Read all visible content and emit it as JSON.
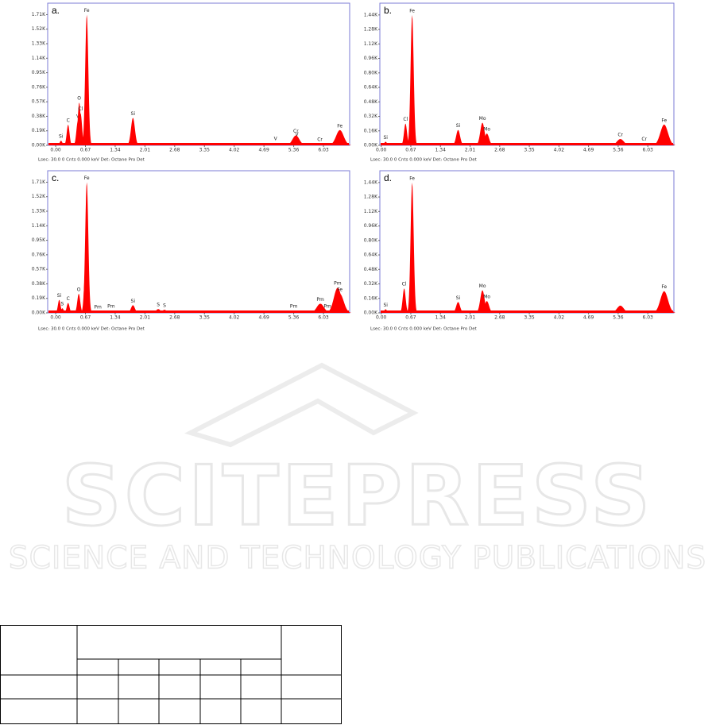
{
  "chart_data": [
    {
      "type": "spectrum",
      "title": "a.",
      "color": "#ff0000",
      "footer": "Lsec: 30.0 0 Cnts  0.000 keV Det: Octane Pro Det",
      "xlim": [
        -0.18,
        6.62
      ],
      "ylim": [
        0,
        1860
      ],
      "xticks": [
        {
          "value": 0,
          "label": "0.00"
        },
        0.67,
        1.34,
        2.01,
        2.68,
        3.35,
        4.02,
        4.69,
        5.36,
        6.03
      ],
      "yticks": [
        {
          "value": 0,
          "label": "0.00K"
        },
        {
          "value": 190,
          "label": "0.19K"
        },
        {
          "value": 380,
          "label": "0.38K"
        },
        {
          "value": 570,
          "label": "0.57K"
        },
        {
          "value": 760,
          "label": "0.76K"
        },
        {
          "value": 950,
          "label": "0.95K"
        },
        {
          "value": 1140,
          "label": "1.14K"
        },
        {
          "value": 1330,
          "label": "1.33K"
        },
        {
          "value": 1520,
          "label": "1.52K"
        },
        {
          "value": 1710,
          "label": "1.71K"
        }
      ],
      "x": [
        0.12,
        0.28,
        0.5,
        0.53,
        0.56,
        0.7,
        1.74,
        4.95,
        5.41,
        5.43,
        5.95,
        6.4
      ],
      "values": [
        60,
        270,
        320,
        560,
        420,
        1710,
        360,
        30,
        130,
        90,
        20,
        200
      ],
      "labels": [
        "Si",
        "C",
        "V",
        "O",
        "Cl",
        "Fe",
        "Si",
        "V",
        "Cr",
        "V",
        "Cr",
        "Fe"
      ]
    },
    {
      "type": "spectrum",
      "title": "b.",
      "color": "#ff0000",
      "footer": "Lsec: 30.0 0 Cnts  0.000 keV Det: Octane Pro Det",
      "xlim": [
        -0.03,
        6.62
      ],
      "ylim": [
        0,
        1570
      ],
      "xticks": [
        {
          "value": 0,
          "label": "0.00"
        },
        0.67,
        1.34,
        2.01,
        2.68,
        3.35,
        4.02,
        4.69,
        5.36,
        6.03
      ],
      "yticks": [
        {
          "value": 0,
          "label": "0.00K"
        },
        {
          "value": 160,
          "label": "0.16K"
        },
        {
          "value": 320,
          "label": "0.32K"
        },
        {
          "value": 480,
          "label": "0.48K"
        },
        {
          "value": 640,
          "label": "0.64K"
        },
        {
          "value": 800,
          "label": "0.80K"
        },
        {
          "value": 960,
          "label": "0.96K"
        },
        {
          "value": 1120,
          "label": "1.12K"
        },
        {
          "value": 1280,
          "label": "1.28K"
        },
        {
          "value": 1440,
          "label": "1.44K"
        }
      ],
      "x": [
        0.1,
        0.55,
        0.7,
        1.74,
        2.29,
        2.39,
        5.41,
        5.95,
        6.4
      ],
      "values": [
        40,
        240,
        1440,
        170,
        250,
        130,
        70,
        20,
        230
      ],
      "labels": [
        "Si",
        "Cl",
        "Fe",
        "Si",
        "Mo",
        "Mo",
        "Cr",
        "Cr",
        "Fe"
      ]
    },
    {
      "type": "spectrum",
      "title": "c.",
      "color": "#ff0000",
      "footer": "Lsec: 30.0 0 Cnts  0.000 keV Det: Octane Pro Det",
      "xlim": [
        -0.18,
        6.62
      ],
      "ylim": [
        0,
        1860
      ],
      "xticks": [
        {
          "value": 0,
          "label": "0.00"
        },
        0.67,
        1.34,
        2.01,
        2.68,
        3.35,
        4.02,
        4.69,
        5.36,
        6.03
      ],
      "yticks": [
        {
          "value": 0,
          "label": "0.00K"
        },
        {
          "value": 190,
          "label": "0.19K"
        },
        {
          "value": 380,
          "label": "0.38K"
        },
        {
          "value": 570,
          "label": "0.57K"
        },
        {
          "value": 760,
          "label": "0.76K"
        },
        {
          "value": 950,
          "label": "0.95K"
        },
        {
          "value": 1140,
          "label": "1.14K"
        },
        {
          "value": 1330,
          "label": "1.33K"
        },
        {
          "value": 1520,
          "label": "1.52K"
        },
        {
          "value": 1710,
          "label": "1.71K"
        }
      ],
      "x": [
        0.08,
        0.15,
        0.28,
        0.52,
        0.68,
        0.7,
        0.95,
        1.25,
        1.74,
        2.31,
        2.45,
        5.36,
        5.96,
        6.12,
        6.35,
        6.4
      ],
      "values": [
        170,
        60,
        130,
        250,
        700,
        1710,
        20,
        30,
        100,
        50,
        40,
        30,
        120,
        30,
        330,
        250
      ],
      "labels": [
        "Si",
        "S",
        "C",
        "O",
        "F",
        "Fe",
        "Pm",
        "Pm",
        "Si",
        "S",
        "S",
        "Pm",
        "Pm",
        "Pm",
        "Pm",
        "Fe"
      ]
    },
    {
      "type": "spectrum",
      "title": "d.",
      "color": "#ff0000",
      "footer": "Lsec: 30.0 0 Cnts  0.000 keV Det: Octane Pro Det",
      "xlim": [
        -0.03,
        6.62
      ],
      "ylim": [
        0,
        1570
      ],
      "xticks": [
        {
          "value": 0,
          "label": "0.00"
        },
        0.67,
        1.34,
        2.01,
        2.68,
        3.35,
        4.02,
        4.69,
        5.36,
        6.03
      ],
      "yticks": [
        {
          "value": 0,
          "label": "0.00K"
        },
        {
          "value": 160,
          "label": "0.16K"
        },
        {
          "value": 320,
          "label": "0.32K"
        },
        {
          "value": 480,
          "label": "0.48K"
        },
        {
          "value": 640,
          "label": "0.64K"
        },
        {
          "value": 800,
          "label": "0.80K"
        },
        {
          "value": 960,
          "label": "0.96K"
        },
        {
          "value": 1120,
          "label": "1.12K"
        },
        {
          "value": 1280,
          "label": "1.28K"
        },
        {
          "value": 1440,
          "label": "1.44K"
        }
      ],
      "x": [
        0.1,
        0.52,
        0.7,
        1.74,
        2.29,
        2.39,
        5.41,
        6.4
      ],
      "values": [
        40,
        270,
        1440,
        120,
        250,
        130,
        80,
        240
      ],
      "labels": [
        "Si",
        "Cl",
        "Fe",
        "Si",
        "Mo",
        "Mo",
        null,
        "Fe"
      ]
    }
  ],
  "watermark": {
    "title": "SCITEPRESS",
    "subtitle": "SCIENCE AND TECHNOLOGY PUBLICATIONS"
  }
}
